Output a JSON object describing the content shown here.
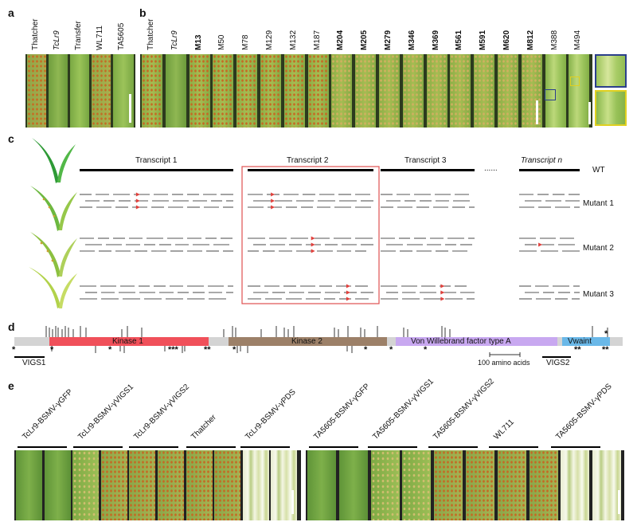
{
  "panel_labels": {
    "a": "a",
    "b": "b",
    "c": "c",
    "d": "d",
    "e": "e"
  },
  "panel_a": {
    "lines": [
      "Thatcher",
      "TcLr9",
      "Transfer",
      "WL711",
      "TA5605"
    ],
    "italic_index": 1
  },
  "panel_b": {
    "lines": [
      {
        "name": "Thatcher",
        "bold": false
      },
      {
        "name": "TcLr9",
        "bold": false
      },
      {
        "name": "M13",
        "bold": true
      },
      {
        "name": "M50",
        "bold": false
      },
      {
        "name": "M78",
        "bold": false
      },
      {
        "name": "M129",
        "bold": false
      },
      {
        "name": "M132",
        "bold": false
      },
      {
        "name": "M187",
        "bold": false
      },
      {
        "name": "M204",
        "bold": true
      },
      {
        "name": "M205",
        "bold": true
      },
      {
        "name": "M279",
        "bold": true
      },
      {
        "name": "M346",
        "bold": true
      },
      {
        "name": "M369",
        "bold": true
      },
      {
        "name": "M561",
        "bold": true
      },
      {
        "name": "M591",
        "bold": true
      },
      {
        "name": "M620",
        "bold": true
      },
      {
        "name": "M812",
        "bold": true
      },
      {
        "name": "M388",
        "bold": false
      },
      {
        "name": "M494",
        "bold": false
      }
    ]
  },
  "panel_c": {
    "transcripts": [
      "Transcript 1",
      "Transcript 2",
      "Transcript 3",
      "Transcript n"
    ],
    "ellipsis": "......",
    "rows": [
      "WT",
      "Mutant 1",
      "Mutant 2",
      "Mutant 3"
    ]
  },
  "panel_d": {
    "domains": [
      "Kinase 1",
      "Kinase 2",
      "Von Willebrand factor type A",
      "Vwaint"
    ],
    "vigs": [
      "VIGS1",
      "VIGS2"
    ],
    "scale": "100 amino acids",
    "stars": [
      "*",
      "*",
      "*",
      "***",
      "**",
      "*",
      "*",
      "*",
      "*",
      "**",
      "**"
    ]
  },
  "panel_e": {
    "groups": [
      "TcLr9-BSMV-γGFP",
      "TcLr9-BSMV-γVIGS1",
      "TcLr9-BSMV-γVIGS2",
      "Thatcher",
      "TcLr9-BSMV-γPDS",
      "TA5605-BSMV-γGFP",
      "TA5605-BSMV-γVIGS1",
      "TA5605-BSMV-γVIGS2",
      "WL711",
      "TA5605-BSMV-γPDS"
    ]
  },
  "colors": {
    "leaf_green": "#7fae3f",
    "rust_orange": "#c9772b",
    "kinase1": "#f0505a",
    "kinase2": "#9c8068",
    "vwa": "#c8a8f0",
    "vwaint": "#6ab8e8",
    "mutation_red": "#e0403c"
  }
}
